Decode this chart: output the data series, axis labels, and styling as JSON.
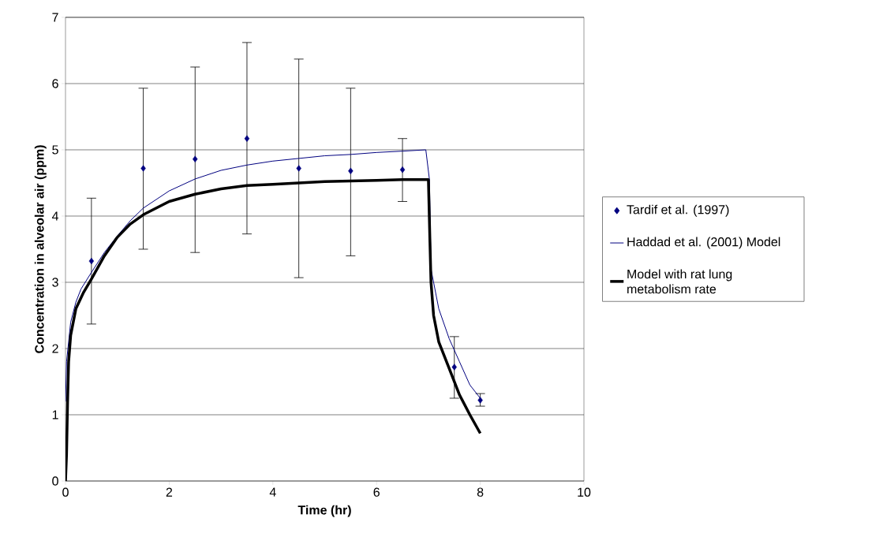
{
  "chart_data": {
    "type": "line",
    "xlabel": "Time (hr)",
    "ylabel": "Concentration in alveolar air (ppm)",
    "xlim": [
      0,
      10
    ],
    "xticks": [
      0,
      2,
      4,
      6,
      8,
      10
    ],
    "ylim": [
      0,
      7
    ],
    "yticks": [
      0,
      1,
      2,
      3,
      4,
      5,
      6,
      7
    ],
    "grid": "y",
    "legend": "right",
    "series": [
      {
        "name": "Tardif et al. (1997)",
        "type": "scatter",
        "marker": "diamond",
        "color": "#000080",
        "x": [
          0.5,
          1.5,
          2.5,
          3.5,
          4.5,
          5.5,
          6.5,
          7.5,
          8
        ],
        "values": [
          3.32,
          4.72,
          4.86,
          5.17,
          4.72,
          4.68,
          4.7,
          1.72,
          1.22
        ],
        "errors": [
          [
            2.37,
            4.27
          ],
          [
            3.5,
            5.93
          ],
          [
            3.45,
            6.25
          ],
          [
            3.73,
            6.62
          ],
          [
            3.07,
            6.37
          ],
          [
            3.4,
            5.93
          ],
          [
            4.22,
            5.17
          ],
          [
            1.25,
            2.18
          ],
          [
            1.13,
            1.32
          ]
        ]
      },
      {
        "name": "Haddad et al. (2001) Model",
        "marker": "none",
        "color": "#000080",
        "x": [
          0,
          0.02,
          0.1,
          0.2,
          0.3,
          0.5,
          0.75,
          1,
          1.25,
          1.5,
          2,
          2.5,
          3,
          3.5,
          4,
          4.5,
          5,
          5.5,
          6,
          6.5,
          6.95,
          7.02,
          7.05,
          7.2,
          7.4,
          7.6,
          7.8,
          8
        ],
        "values": [
          1.2,
          1.8,
          2.4,
          2.7,
          2.9,
          3.15,
          3.45,
          3.7,
          3.93,
          4.12,
          4.38,
          4.56,
          4.69,
          4.77,
          4.83,
          4.87,
          4.91,
          4.93,
          4.96,
          4.98,
          5.0,
          4.55,
          3.2,
          2.6,
          2.15,
          1.8,
          1.45,
          1.25
        ]
      },
      {
        "name": "Model with rat lung metabolism rate",
        "marker": "none",
        "color": "#000000",
        "x": [
          0,
          0.02,
          0.04,
          0.06,
          0.1,
          0.2,
          0.35,
          0.5,
          0.75,
          1,
          1.25,
          1.5,
          2,
          2.5,
          3,
          3.5,
          4,
          4.5,
          5,
          5.5,
          6,
          6.5,
          7,
          7.03,
          7.05,
          7.1,
          7.2,
          7.4,
          7.6,
          7.8,
          8
        ],
        "values": [
          0,
          0.4,
          1.2,
          1.8,
          2.2,
          2.6,
          2.85,
          3.05,
          3.4,
          3.68,
          3.88,
          4.02,
          4.22,
          4.33,
          4.41,
          4.46,
          4.48,
          4.5,
          4.52,
          4.53,
          4.54,
          4.55,
          4.55,
          3.6,
          3.0,
          2.5,
          2.1,
          1.7,
          1.3,
          1.0,
          0.72
        ]
      }
    ]
  }
}
